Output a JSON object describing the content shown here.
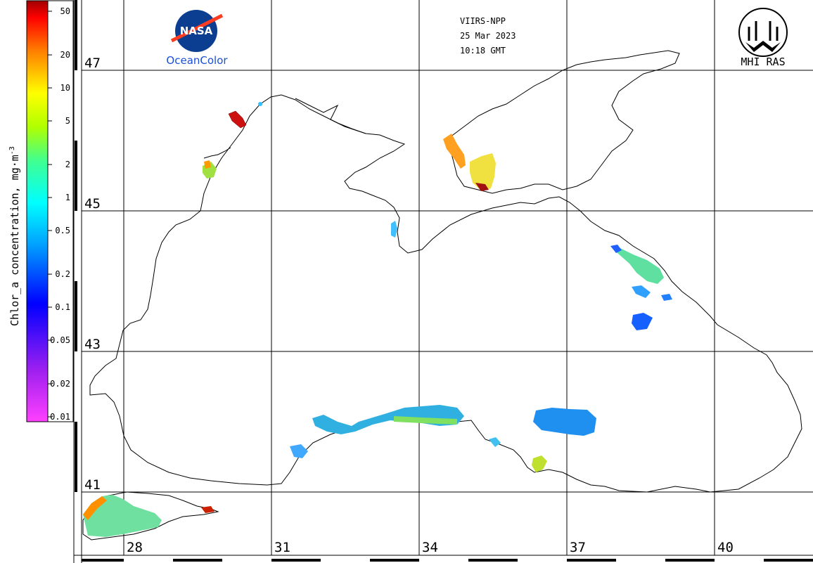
{
  "header": {
    "sensor": "VIIRS-NPP",
    "date": "25 Mar 2023",
    "time": "10:18 GMT"
  },
  "logos": {
    "nasa_text": "NASA",
    "oceancolor_text": "OceanColor",
    "mhi_text": "MHI RAS"
  },
  "colorbar": {
    "title": "Chlor_a concentration, mg·m",
    "unit_superscript": "-3",
    "ticks": [
      "50",
      "20",
      "10",
      "5",
      "2",
      "1",
      "0.5",
      "0.2",
      "0.1",
      "0.05",
      "0.02",
      "0.01"
    ],
    "scale": "log",
    "range": [
      0.01,
      50
    ],
    "colors": [
      "#ff00ff",
      "#8a2be2",
      "#0000ff",
      "#00aaff",
      "#00ffff",
      "#7fff00",
      "#ffff00",
      "#ff8c00",
      "#ff0000",
      "#aa0000"
    ]
  },
  "grid": {
    "lat_labels": [
      "47",
      "45",
      "43",
      "41"
    ],
    "lon_labels": [
      "28",
      "31",
      "34",
      "37",
      "40"
    ]
  },
  "colors": {
    "coastline": "#000000",
    "grid": "#000000",
    "header_text": "#000000",
    "oceancolor_blue": "#1a4fd6"
  }
}
